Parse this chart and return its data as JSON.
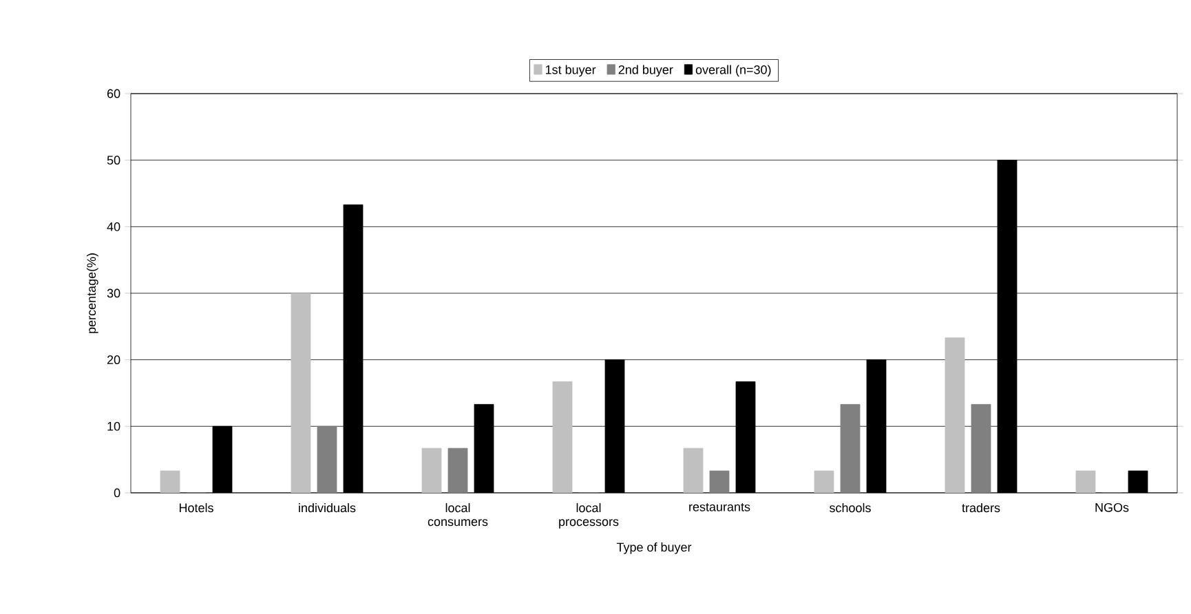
{
  "chart_data": {
    "type": "bar",
    "xlabel": "Type of buyer",
    "ylabel": "percentage(%)",
    "categories": [
      "Hotels",
      "individuals",
      "local consumers",
      "local processors",
      "restaurants",
      "schools",
      "traders",
      "NGOs"
    ],
    "series": [
      {
        "name": "1st buyer",
        "color": "#c0c0c0",
        "values": [
          3.3,
          30,
          6.7,
          16.7,
          6.7,
          3.3,
          23.3,
          3.3
        ]
      },
      {
        "name": "2nd buyer",
        "color": "#808080",
        "values": [
          0,
          10,
          6.7,
          0,
          3.3,
          13.3,
          13.3,
          0
        ]
      },
      {
        "name": "overall (n=30)",
        "color": "#000000",
        "values": [
          10,
          43.3,
          13.3,
          20,
          16.7,
          20,
          50,
          3.3
        ]
      }
    ],
    "ylim": [
      0,
      60
    ],
    "yticks": [
      0,
      10,
      20,
      30,
      40,
      50,
      60
    ],
    "grid": "y",
    "legend": "top"
  }
}
